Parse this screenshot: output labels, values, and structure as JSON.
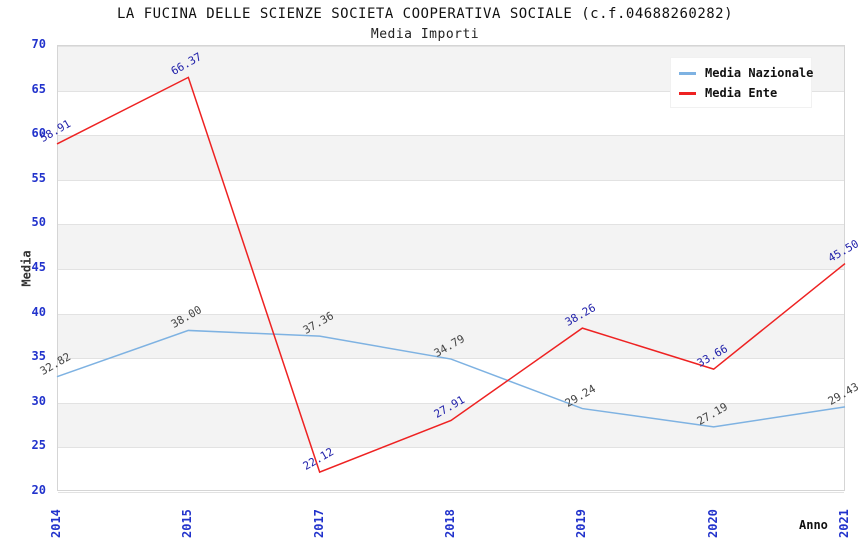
{
  "header": {
    "title": "LA FUCINA DELLE SCIENZE SOCIETA COOPERATIVA SOCIALE (c.f.04688260282)",
    "subtitle": "Media Importi"
  },
  "axes": {
    "y_title": "Media",
    "x_title": "Anno",
    "y_ticks": [
      70,
      65,
      60,
      55,
      50,
      45,
      40,
      35,
      30,
      25,
      20
    ],
    "tick_color": "#2233CC"
  },
  "chart_data": {
    "type": "line",
    "title": "LA FUCINA DELLE SCIENZE SOCIETA COOPERATIVA SOCIALE (c.f.04688260282)",
    "subtitle": "Media Importi",
    "x": [
      "2014",
      "2015",
      "2017",
      "2018",
      "2019",
      "2020",
      "2021"
    ],
    "xlabel": "Anno",
    "ylabel": "Media",
    "ylim": [
      20,
      70
    ],
    "grid": "horizontal-bands",
    "legend_position": "top-right",
    "series": [
      {
        "name": "Media Nazionale",
        "color": "#7EB2E2",
        "label_color": "#444444",
        "values": [
          32.82,
          38.0,
          37.36,
          34.79,
          29.24,
          27.19,
          29.43
        ],
        "labels": [
          "32.82",
          "38.00",
          "37.36",
          "34.79",
          "29.24",
          "27.19",
          "29.43"
        ]
      },
      {
        "name": "Media Ente",
        "color": "#EE2222",
        "label_color": "#2222AA",
        "values": [
          58.91,
          66.37,
          22.12,
          27.91,
          38.26,
          33.66,
          45.5
        ],
        "labels": [
          "58.91",
          "66.37",
          "22.12",
          "27.91",
          "38.26",
          "33.66",
          "45.50"
        ]
      }
    ]
  }
}
